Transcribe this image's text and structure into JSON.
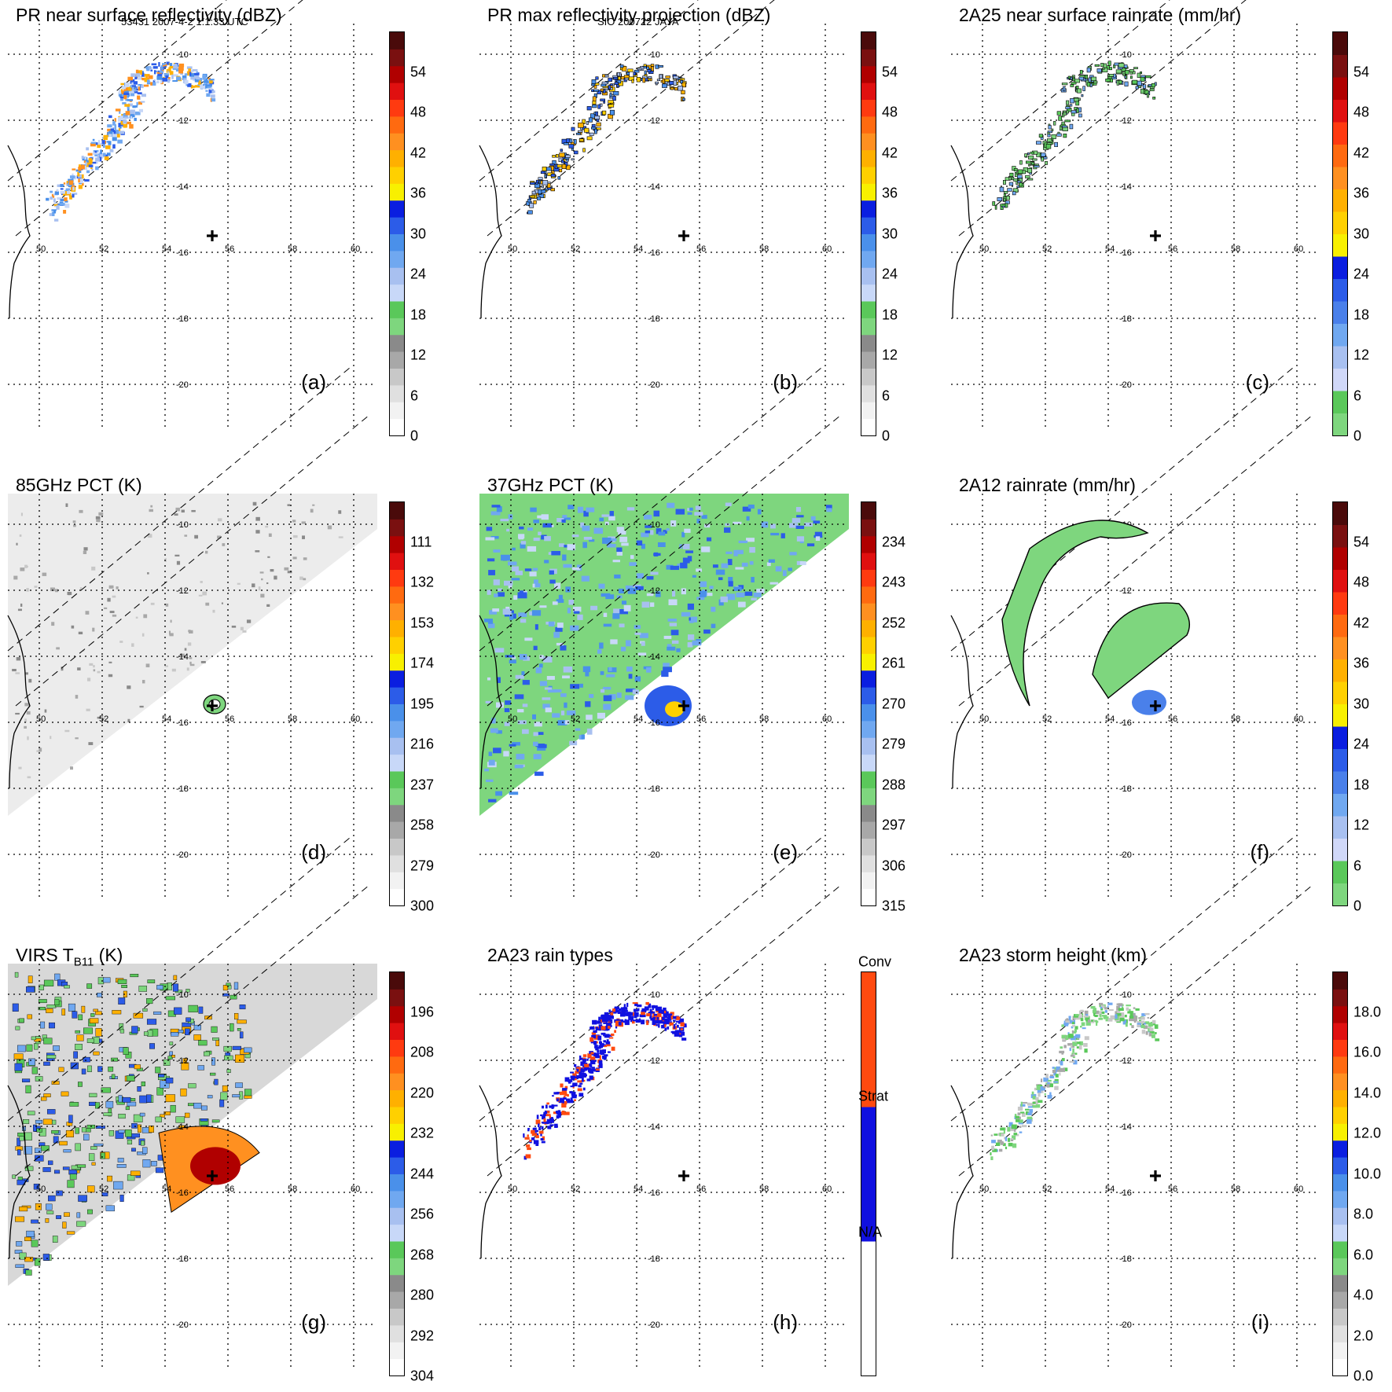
{
  "header": {
    "left": "53431 2007-4-2 1:1:33 UTC",
    "center": "SIO 200722 JAYA"
  },
  "map_labels": {
    "lon": [
      "50",
      "52",
      "54",
      "56",
      "58",
      "60"
    ],
    "lat": [
      "-10",
      "-12",
      "-14",
      "-16",
      "-18",
      "-20"
    ]
  },
  "chart_data": [
    {
      "id": "a",
      "type": "heatmap",
      "title": "PR near surface reflectivity (dBZ)",
      "panel_label": "(a)",
      "colorbar": {
        "ticks": [
          "54",
          "48",
          "42",
          "36",
          "30",
          "24",
          "18",
          "12",
          "6",
          "0"
        ],
        "min": 0,
        "max": 60
      },
      "field": "PR near-surface swath along narrow diagonal band"
    },
    {
      "id": "b",
      "type": "heatmap",
      "title": "PR max reflectivity projection (dBZ)",
      "panel_label": "(b)",
      "colorbar": {
        "ticks": [
          "54",
          "48",
          "42",
          "36",
          "30",
          "24",
          "18",
          "12",
          "6",
          "0"
        ],
        "min": 0,
        "max": 60
      },
      "field": "PR max projection, contoured"
    },
    {
      "id": "c",
      "type": "heatmap",
      "title": "2A25 near surface rainrate (mm/hr)",
      "panel_label": "(c)",
      "colorbar": {
        "ticks": [
          "54",
          "48",
          "42",
          "36",
          "30",
          "24",
          "18",
          "12",
          "6",
          "0"
        ],
        "min": 0,
        "max": 60
      },
      "field": "2A25 rainrate along PR swath"
    },
    {
      "id": "d",
      "type": "heatmap",
      "title": "85GHz PCT (K)",
      "panel_label": "(d)",
      "colorbar": {
        "ticks": [
          "111",
          "132",
          "153",
          "174",
          "195",
          "216",
          "237",
          "258",
          "279",
          "300"
        ],
        "min": 90,
        "max": 300
      },
      "field": "85 GHz PCT over TMI swath"
    },
    {
      "id": "e",
      "type": "heatmap",
      "title": "37GHz PCT (K)",
      "panel_label": "(e)",
      "colorbar": {
        "ticks": [
          "234",
          "243",
          "252",
          "261",
          "270",
          "279",
          "288",
          "297",
          "306",
          "315"
        ],
        "min": 225,
        "max": 315
      },
      "field": "37 GHz PCT over TMI swath"
    },
    {
      "id": "f",
      "type": "heatmap",
      "title": "2A12 rainrate (mm/hr)",
      "panel_label": "(f)",
      "colorbar": {
        "ticks": [
          "54",
          "48",
          "42",
          "36",
          "30",
          "24",
          "18",
          "12",
          "6",
          "0"
        ],
        "min": 0,
        "max": 60
      },
      "field": "2A12 rainrate spiral bands"
    },
    {
      "id": "g",
      "type": "heatmap",
      "title": "VIRS T",
      "title_sub": "B11",
      "title_tail": " (K)",
      "panel_label": "(g)",
      "colorbar": {
        "ticks": [
          "196",
          "208",
          "220",
          "232",
          "244",
          "256",
          "268",
          "280",
          "292",
          "304"
        ],
        "min": 184,
        "max": 304
      },
      "field": "VIRS channel 11 brightness temperature"
    },
    {
      "id": "h",
      "type": "heatmap",
      "title": "2A23 rain types",
      "panel_label": "(h)",
      "colorbar": {
        "ticks": [
          "Conv",
          "Strat",
          "N/A"
        ],
        "categories": [
          "N/A",
          "Strat",
          "Conv"
        ]
      },
      "field": "2A23 rain type classification"
    },
    {
      "id": "i",
      "type": "heatmap",
      "title": "2A23 storm height (km)",
      "panel_label": "(i)",
      "colorbar": {
        "ticks": [
          "18.0",
          "16.0",
          "14.0",
          "12.0",
          "10.0",
          "8.0",
          "6.0",
          "4.0",
          "2.0",
          "0.0"
        ],
        "min": 0,
        "max": 20
      },
      "field": "2A23 storm height"
    }
  ],
  "colors": {
    "std_scale": [
      "#ffffff",
      "#f2f2f2",
      "#e0e0e0",
      "#c8c8c8",
      "#a8a8a8",
      "#8a8a8a",
      "#7ed67e",
      "#5ac85a",
      "#c8d8f8",
      "#a8c0f0",
      "#70a8f0",
      "#4a90ea",
      "#2c5ce8",
      "#0a1ee0",
      "#f8f000",
      "#ffd000",
      "#ffb000",
      "#ff9020",
      "#ff6a10",
      "#ff3a10",
      "#e01010",
      "#b00000",
      "#7a1010",
      "#4a0a0a"
    ],
    "rate_scale": [
      "#7ed67e",
      "#5ac85a",
      "#d0d8f8",
      "#a8c0f0",
      "#70a8f0",
      "#4a80ea",
      "#2c5ce8",
      "#0a1ee0",
      "#f8f000",
      "#ffd000",
      "#ffb000",
      "#ff9020",
      "#ff6a10",
      "#ff3a10",
      "#e01010",
      "#b00000",
      "#7a1010",
      "#4a0a0a"
    ],
    "rain_types": [
      "#ffffff",
      "#1010e0",
      "#ff4a10"
    ]
  }
}
